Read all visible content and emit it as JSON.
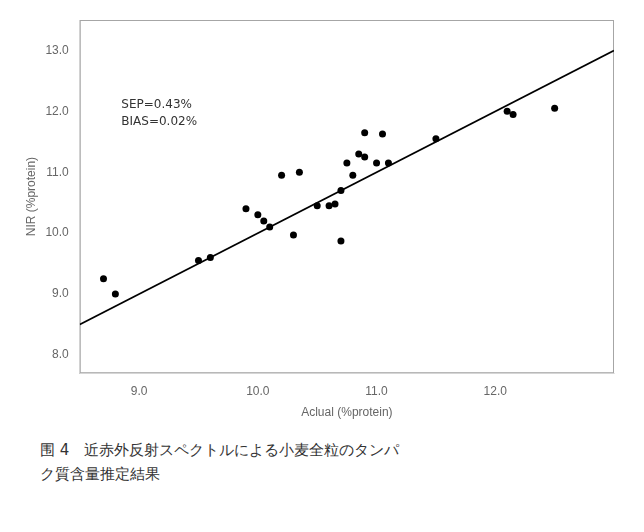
{
  "chart_data": {
    "type": "scatter",
    "xlabel": "Aclual (%protein)",
    "ylabel": "NIR (%protein)",
    "annotations": [
      {
        "text": [
          "SEP=0.43%",
          "BIAS=0.02%"
        ],
        "x": 8.85,
        "y": 12.2
      }
    ],
    "caption": [
      "围 4　近赤外反射スペクトルによる小麦全粒のタンパ",
      "ク質含量推定結果"
    ],
    "series": [
      {
        "type": "line",
        "color": "#000000",
        "x": [
          8.5,
          13.0
        ],
        "values": [
          8.5,
          13.0
        ]
      },
      {
        "type": "scatter",
        "color": "#000000",
        "x": [
          8.7,
          8.8,
          9.5,
          9.6,
          9.9,
          10.0,
          10.05,
          10.1,
          10.2,
          10.3,
          10.35,
          10.5,
          10.6,
          10.65,
          10.7,
          10.7,
          10.75,
          10.8,
          10.85,
          10.9,
          10.9,
          11.0,
          11.05,
          11.1,
          11.5,
          12.1,
          12.15,
          12.5
        ],
        "values": [
          9.25,
          9.0,
          9.55,
          9.6,
          10.4,
          10.3,
          10.2,
          10.1,
          10.95,
          9.97,
          11.0,
          10.45,
          10.45,
          10.48,
          10.7,
          9.87,
          11.15,
          10.95,
          11.3,
          11.65,
          11.25,
          11.15,
          11.63,
          11.15,
          11.55,
          12.0,
          11.95,
          12.05
        ]
      }
    ],
    "xlim": [
      8.5,
      13.0
    ],
    "ylim": [
      7.7,
      13.5
    ],
    "xticks": [
      {
        "value": 9.0,
        "label": "9.0"
      },
      {
        "value": 10.0,
        "label": "10.0"
      },
      {
        "value": 11.0,
        "label": "11.0"
      },
      {
        "value": 12.0,
        "label": "12.0"
      }
    ],
    "yticks": [
      {
        "value": 8.0,
        "label": "8.0"
      },
      {
        "value": 9.0,
        "label": "9.0"
      },
      {
        "value": 10.0,
        "label": "10.0"
      },
      {
        "value": 11.0,
        "label": "11.0"
      },
      {
        "value": 12.0,
        "label": "12.0"
      },
      {
        "value": 13.0,
        "label": "13.0"
      }
    ],
    "grid": false
  }
}
